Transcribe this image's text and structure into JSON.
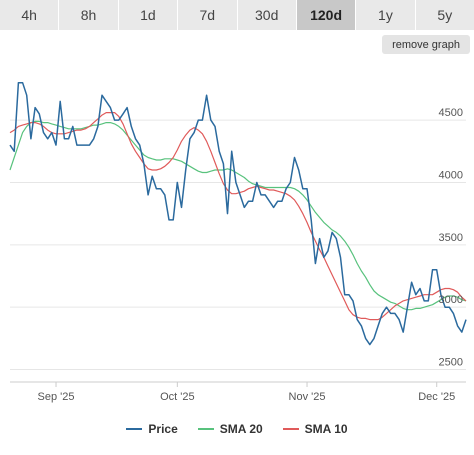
{
  "timeframe_tabs": [
    {
      "label": "4h",
      "active": false
    },
    {
      "label": "8h",
      "active": false
    },
    {
      "label": "1d",
      "active": false
    },
    {
      "label": "7d",
      "active": false
    },
    {
      "label": "30d",
      "active": false
    },
    {
      "label": "120d",
      "active": true
    },
    {
      "label": "1y",
      "active": false
    },
    {
      "label": "5y",
      "active": false
    }
  ],
  "remove_graph_label": "remove graph",
  "chart_data": {
    "type": "line",
    "x_tick_labels": [
      "Sep '25",
      "Oct '25",
      "Nov '25",
      "Dec '25"
    ],
    "y_ticks": [
      2500,
      3000,
      3500,
      4000,
      4500
    ],
    "ylim": [
      2400,
      4950
    ],
    "grid": true,
    "legend_position": "bottom",
    "series": [
      {
        "name": "Price",
        "color": "#2b6a9e",
        "values": [
          4300,
          4250,
          4800,
          4800,
          4700,
          4350,
          4600,
          4550,
          4400,
          4350,
          4400,
          4300,
          4650,
          4350,
          4350,
          4450,
          4300,
          4300,
          4300,
          4300,
          4350,
          4450,
          4700,
          4650,
          4600,
          4500,
          4500,
          4550,
          4600,
          4450,
          4350,
          4300,
          4150,
          3900,
          4050,
          3950,
          3950,
          3900,
          3700,
          3700,
          4000,
          3800,
          4100,
          4350,
          4400,
          4500,
          4500,
          4700,
          4500,
          4450,
          4250,
          4150,
          3750,
          4250,
          4000,
          3900,
          3800,
          3850,
          3850,
          4000,
          3900,
          3900,
          3850,
          3800,
          3850,
          3850,
          3950,
          4000,
          4200,
          4100,
          3950,
          3950,
          3700,
          3350,
          3550,
          3400,
          3450,
          3600,
          3550,
          3400,
          3100,
          3100,
          3050,
          2900,
          2850,
          2750,
          2700,
          2750,
          2850,
          2950,
          3000,
          2950,
          2950,
          2900,
          2800,
          3000,
          3200,
          3100,
          3150,
          3050,
          3050,
          3300,
          3300,
          3100,
          3000,
          3000,
          2950,
          2850,
          2800,
          2900
        ]
      },
      {
        "name": "SMA 20",
        "color": "#58c27d",
        "values": [
          4100,
          4200,
          4300,
          4400,
          4450,
          4480,
          4490,
          4490,
          4480,
          4480,
          4470,
          4460,
          4450,
          4440,
          4430,
          4430,
          4430,
          4430,
          4440,
          4450,
          4460,
          4460,
          4470,
          4480,
          4480,
          4470,
          4450,
          4420,
          4380,
          4340,
          4300,
          4260,
          4220,
          4200,
          4190,
          4180,
          4180,
          4190,
          4190,
          4190,
          4180,
          4170,
          4150,
          4130,
          4110,
          4090,
          4080,
          4080,
          4090,
          4100,
          4100,
          4100,
          4110,
          4100,
          4080,
          4060,
          4040,
          4010,
          3990,
          3980,
          3970,
          3960,
          3960,
          3960,
          3960,
          3960,
          3960,
          3960,
          3950,
          3930,
          3900,
          3860,
          3810,
          3760,
          3720,
          3680,
          3650,
          3620,
          3600,
          3570,
          3530,
          3480,
          3420,
          3350,
          3290,
          3240,
          3180,
          3130,
          3100,
          3080,
          3060,
          3040,
          3030,
          3010,
          2990,
          2980,
          2980,
          2990,
          2990,
          3000,
          3010,
          3020,
          3040,
          3060,
          3080,
          3090,
          3090,
          3080,
          3060,
          3050
        ]
      },
      {
        "name": "SMA 10",
        "color": "#e05a5a",
        "values": [
          4400,
          4420,
          4450,
          4460,
          4470,
          4480,
          4480,
          4470,
          4450,
          4420,
          4400,
          4390,
          4390,
          4390,
          4400,
          4410,
          4420,
          4420,
          4430,
          4450,
          4480,
          4510,
          4540,
          4560,
          4560,
          4560,
          4530,
          4470,
          4390,
          4310,
          4250,
          4200,
          4150,
          4110,
          4100,
          4100,
          4110,
          4130,
          4160,
          4200,
          4260,
          4330,
          4380,
          4420,
          4440,
          4420,
          4390,
          4330,
          4250,
          4160,
          4070,
          3990,
          3940,
          3910,
          3910,
          3920,
          3930,
          3950,
          3960,
          3970,
          3960,
          3950,
          3940,
          3940,
          3930,
          3920,
          3910,
          3890,
          3860,
          3810,
          3750,
          3680,
          3600,
          3530,
          3460,
          3400,
          3330,
          3260,
          3190,
          3120,
          3050,
          2980,
          2940,
          2920,
          2910,
          2910,
          2900,
          2900,
          2900,
          2920,
          2950,
          2980,
          3010,
          3030,
          3050,
          3060,
          3070,
          3080,
          3090,
          3100,
          3100,
          3100,
          3120,
          3140,
          3150,
          3150,
          3140,
          3120,
          3080,
          3050
        ]
      }
    ]
  }
}
